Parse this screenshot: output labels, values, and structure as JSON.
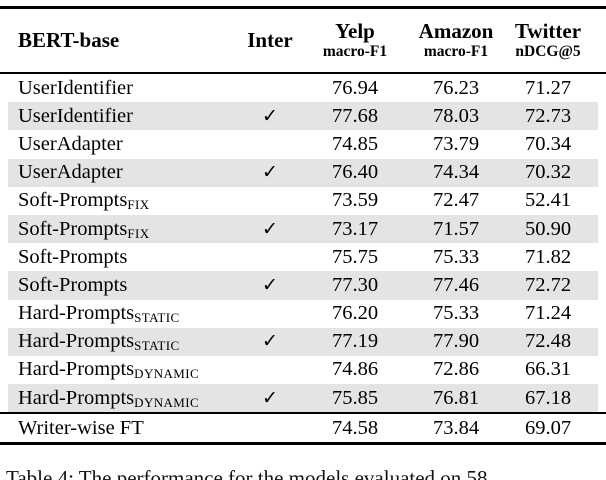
{
  "table": {
    "model_header": "BERT-base",
    "inter_header": "Inter",
    "columns": [
      {
        "name": "Yelp",
        "metric": "macro-F1"
      },
      {
        "name": "Amazon",
        "metric": "macro-F1"
      },
      {
        "name": "Twitter",
        "metric": "nDCG@5"
      }
    ],
    "check_symbol": "✓",
    "rows": [
      {
        "method": "UserIdentifier",
        "sub": "",
        "inter": false,
        "yelp": "76.94",
        "amazon": "76.23",
        "twitter": "71.27",
        "shaded": false
      },
      {
        "method": "UserIdentifier",
        "sub": "",
        "inter": true,
        "yelp": "77.68",
        "amazon": "78.03",
        "twitter": "72.73",
        "shaded": true
      },
      {
        "method": "UserAdapter",
        "sub": "",
        "inter": false,
        "yelp": "74.85",
        "amazon": "73.79",
        "twitter": "70.34",
        "shaded": false
      },
      {
        "method": "UserAdapter",
        "sub": "",
        "inter": true,
        "yelp": "76.40",
        "amazon": "74.34",
        "twitter": "70.32",
        "shaded": true
      },
      {
        "method": "Soft-Prompts",
        "sub": "FIX",
        "inter": false,
        "yelp": "73.59",
        "amazon": "72.47",
        "twitter": "52.41",
        "shaded": false
      },
      {
        "method": "Soft-Prompts",
        "sub": "FIX",
        "inter": true,
        "yelp": "73.17",
        "amazon": "71.57",
        "twitter": "50.90",
        "shaded": true
      },
      {
        "method": "Soft-Prompts",
        "sub": "",
        "inter": false,
        "yelp": "75.75",
        "amazon": "75.33",
        "twitter": "71.82",
        "shaded": false
      },
      {
        "method": "Soft-Prompts",
        "sub": "",
        "inter": true,
        "yelp": "77.30",
        "amazon": "77.46",
        "twitter": "72.72",
        "shaded": true
      },
      {
        "method": "Hard-Prompts",
        "sub": "STATIC",
        "inter": false,
        "yelp": "76.20",
        "amazon": "75.33",
        "twitter": "71.24",
        "shaded": false
      },
      {
        "method": "Hard-Prompts",
        "sub": "STATIC",
        "inter": true,
        "yelp": "77.19",
        "amazon": "77.90",
        "twitter": "72.48",
        "shaded": true
      },
      {
        "method": "Hard-Prompts",
        "sub": "DYNAMIC",
        "inter": false,
        "yelp": "74.86",
        "amazon": "72.86",
        "twitter": "66.31",
        "shaded": false
      },
      {
        "method": "Hard-Prompts",
        "sub": "DYNAMIC",
        "inter": true,
        "yelp": "75.85",
        "amazon": "76.81",
        "twitter": "67.18",
        "shaded": true
      }
    ],
    "footer_row": {
      "method": "Writer-wise FT",
      "yelp": "74.58",
      "amazon": "73.84",
      "twitter": "69.07"
    }
  },
  "caption": {
    "text": "Table 4: The performance for the models evaluated on 58"
  },
  "colors": {
    "row_shading": "#e4e4e4",
    "rule": "#000000"
  }
}
